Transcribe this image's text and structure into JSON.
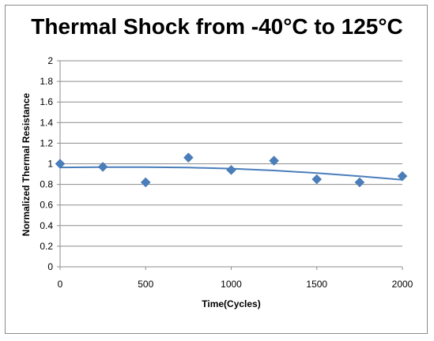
{
  "chart_data": {
    "type": "scatter",
    "title": "Thermal Shock from -40°C to 125°C",
    "xlabel": "Time(Cycles)",
    "ylabel": "Normalized Thermal Resistance",
    "xlim": [
      0,
      2000
    ],
    "ylim": [
      0,
      2
    ],
    "x_ticks": [
      0,
      500,
      1000,
      1500,
      2000
    ],
    "y_ticks": [
      0,
      0.2,
      0.4,
      0.6,
      0.8,
      1,
      1.2,
      1.4,
      1.6,
      1.8,
      2
    ],
    "x_tick_labels": [
      "0",
      "500",
      "1000",
      "1500",
      "2000"
    ],
    "y_tick_labels": [
      "0",
      "0.2",
      "0.4",
      "0.6",
      "0.8",
      "1",
      "1.2",
      "1.4",
      "1.6",
      "1.8",
      "2"
    ],
    "grid": true,
    "legend": "none",
    "marker": "diamond",
    "color": "#4a7ebb",
    "series": [
      {
        "x": [
          0,
          250,
          500,
          750,
          1000,
          1250,
          1500,
          1750,
          2000
        ],
        "y": [
          1.0,
          0.97,
          0.82,
          1.06,
          0.94,
          1.03,
          0.85,
          0.82,
          0.88
        ]
      }
    ],
    "trendline": {
      "type": "polynomial",
      "x": [
        0,
        250,
        500,
        750,
        1000,
        1250,
        1500,
        1750,
        2000
      ],
      "y": [
        0.965,
        0.967,
        0.967,
        0.963,
        0.953,
        0.935,
        0.91,
        0.88,
        0.845
      ]
    }
  }
}
